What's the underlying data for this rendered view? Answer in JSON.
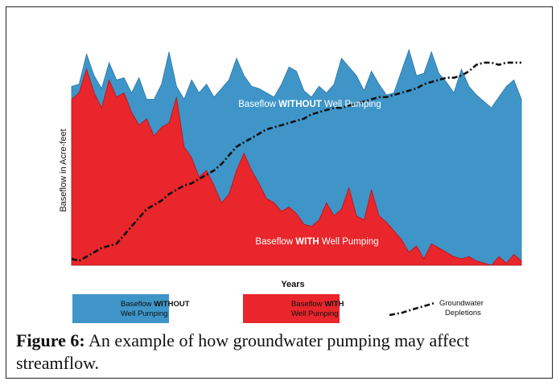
{
  "figure": {
    "caption_label": "Figure 6:",
    "caption_text": " An example of how groundwater pumping may affect streamflow."
  },
  "chart_data": {
    "type": "area",
    "xlabel": "Years",
    "ylabel": "Baseflow in Acre-feet",
    "x_ticks_shown": false,
    "y_ticks_shown": false,
    "grid": false,
    "legend_position": "bottom",
    "colors": {
      "without": "#3f95c8",
      "with": "#e8262b",
      "depletion": "#111111"
    },
    "annotations": [
      {
        "series": "without",
        "prefix": "Baseflow ",
        "bold": "WITHOUT",
        "suffix": " Well Pumping"
      },
      {
        "series": "with",
        "prefix": "Baseflow ",
        "bold": "WITH",
        "suffix": " Well Pumping"
      }
    ],
    "legend": [
      {
        "series": "without",
        "line1_prefix": "Baseflow ",
        "line1_bold": "WITHOUT",
        "line2": "Well Pumping"
      },
      {
        "series": "with",
        "line1_prefix": "Baseflow ",
        "line1_bold": "WITH",
        "line2": "Well Pumping"
      },
      {
        "series": "depletion",
        "line1_prefix": "Groundwater",
        "line1_bold": "",
        "line2": "Depletions"
      }
    ],
    "x": [
      0,
      1,
      2,
      3,
      4,
      5,
      6,
      7,
      8,
      9,
      10,
      11,
      12,
      13,
      14,
      15,
      16,
      17,
      18,
      19,
      20,
      21,
      22,
      23,
      24,
      25,
      26,
      27,
      28,
      29,
      30,
      31,
      32,
      33,
      34,
      35,
      36,
      37,
      38,
      39,
      40,
      41,
      42,
      43,
      44,
      45,
      46,
      47,
      48,
      49,
      50,
      51,
      52,
      53,
      54,
      55,
      56,
      57,
      58,
      59,
      60
    ],
    "series": [
      {
        "key": "without",
        "values": [
          83,
          84,
          98,
          88,
          82,
          94,
          86,
          87,
          80,
          87,
          77,
          77,
          84,
          99,
          83,
          77,
          86,
          80,
          84,
          78,
          82,
          86,
          96,
          88,
          83,
          82,
          80,
          78,
          84,
          92,
          90,
          81,
          78,
          83,
          80,
          84,
          96,
          92,
          88,
          81,
          90,
          84,
          79,
          80,
          90,
          100,
          88,
          89,
          99,
          89,
          85,
          80,
          91,
          83,
          79,
          76,
          73,
          78,
          83,
          86,
          77
        ]
      },
      {
        "key": "with",
        "values": [
          77,
          80,
          91,
          80,
          73,
          86,
          78,
          80,
          71,
          65,
          68,
          60,
          64,
          66,
          78,
          55,
          50,
          41,
          44,
          37,
          29,
          33,
          44,
          52,
          44,
          38,
          31,
          29,
          25,
          27,
          24,
          19,
          18,
          21,
          29,
          23,
          26,
          36,
          23,
          21,
          35,
          23,
          20,
          16,
          12,
          6,
          9,
          3,
          10,
          8,
          6,
          4,
          3,
          4,
          2,
          1,
          0,
          4,
          1,
          5,
          2
        ]
      },
      {
        "key": "depletion",
        "values": [
          3,
          2,
          4,
          6,
          8,
          9,
          10,
          14,
          18,
          22,
          26,
          28,
          30,
          33,
          35,
          37,
          38,
          40,
          42,
          44,
          47,
          51,
          55,
          57,
          59,
          61,
          63,
          64,
          65,
          66,
          67,
          68,
          70,
          71,
          72,
          73,
          73,
          74,
          75,
          76,
          77,
          78,
          78,
          79,
          80,
          81,
          82,
          84,
          85,
          86,
          87,
          87,
          88,
          90,
          93,
          94,
          94,
          93,
          94,
          94,
          94
        ]
      }
    ],
    "ylim": [
      0,
      110
    ]
  }
}
